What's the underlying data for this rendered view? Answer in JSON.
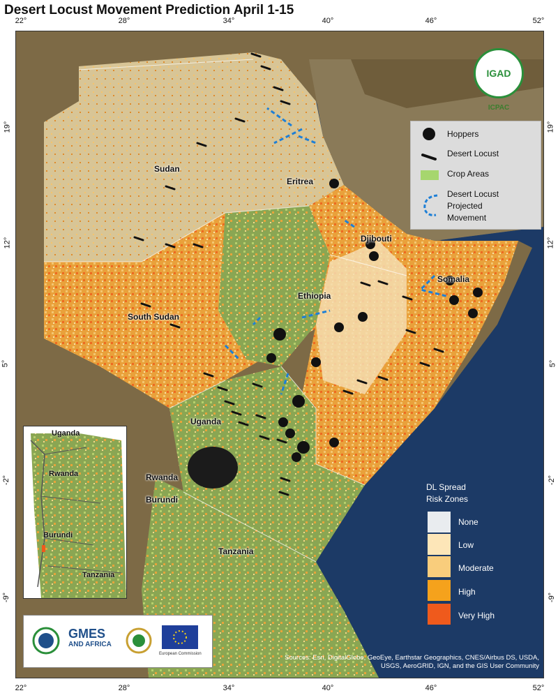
{
  "title": "Desert Locust Movement Prediction April 1-15",
  "lon_ticks": [
    "22",
    "28",
    "34",
    "40",
    "46",
    "52"
  ],
  "lat_ticks": [
    "19",
    "12",
    "5",
    "-2",
    "-9"
  ],
  "tick_suffix": "°",
  "country_labels": {
    "sudan": "Sudan",
    "eritrea": "Eritrea",
    "djibouti": "Djibouti",
    "somalia": "Somalia",
    "ethiopia": "Ethiopia",
    "south_sudan": "South Sudan",
    "uganda": "Uganda",
    "rwanda": "Rwanda",
    "burundi": "Burundi",
    "tanzania": "Tanzania"
  },
  "legend": {
    "hoppers": "Hoppers",
    "desert_locust": "Desert Locust",
    "crop_areas": "Crop Areas",
    "movement": [
      "Desert Locust",
      "Projected",
      "Movement"
    ]
  },
  "logo_igad": {
    "name": "IGAD",
    "sub": "ICPAC"
  },
  "risk_legend": {
    "title": [
      "DL Spread",
      "Risk Zones"
    ],
    "items": [
      {
        "label": "None",
        "color": "#e9ecef"
      },
      {
        "label": "Low",
        "color": "#fde6b8"
      },
      {
        "label": "Moderate",
        "color": "#f9cd7c"
      },
      {
        "label": "High",
        "color": "#f5a21c"
      },
      {
        "label": "Very High",
        "color": "#ef5a1c"
      }
    ]
  },
  "inset_labels": {
    "uganda": "Uganda",
    "rwanda": "Rwanda",
    "burundi": "Burundi",
    "tanzania": "Tanzania"
  },
  "logos": {
    "gmes": "GMES",
    "gmes_sub": "AND AFRICA",
    "ec": "European Commission"
  },
  "source": "Sources: Esri, DigitalGlobe, GeoEye, Earthstar Geographics, CNES/Airbus DS, USDA, USGS, AeroGRID, IGN, and the GIS User Community",
  "colors": {
    "sea": "#1c3a66",
    "crop": "#7fb545",
    "desert": "#d9c49a",
    "risk_high": "#f5a21c",
    "risk_very_high": "#ef5a1c"
  }
}
